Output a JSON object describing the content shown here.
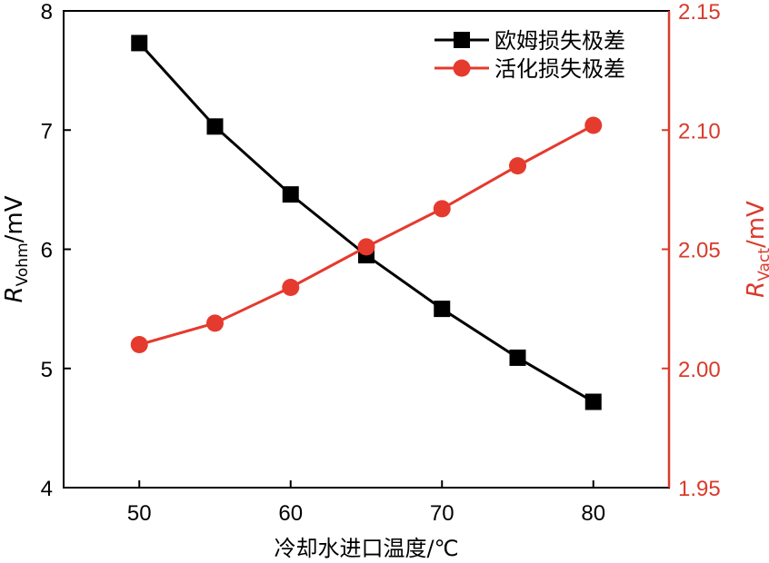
{
  "chart_data": {
    "type": "line",
    "x": [
      50,
      55,
      60,
      65,
      70,
      75,
      80
    ],
    "xlabel": "冷却水进口温度/℃",
    "xlim": [
      45,
      85
    ],
    "xticks": [
      50,
      60,
      70,
      80
    ],
    "left_axis": {
      "label_main": "R",
      "label_sub": "Vohm",
      "label_unit": "/mV",
      "ylim": [
        4,
        8
      ],
      "ticks": [
        "4",
        "5",
        "6",
        "7",
        "8"
      ],
      "color": "#000000"
    },
    "right_axis": {
      "label_main": "R",
      "label_sub": "Vact",
      "label_unit": "/mV",
      "ylim": [
        1.95,
        2.15
      ],
      "ticks": [
        "1.95",
        "2.00",
        "2.05",
        "2.10",
        "2.15"
      ],
      "color": "#d93a2b"
    },
    "series": [
      {
        "name": "欧姆损失极差",
        "axis": "left",
        "marker": "square",
        "color": "#000000",
        "values": [
          7.73,
          7.03,
          6.46,
          5.95,
          5.5,
          5.09,
          4.72
        ]
      },
      {
        "name": "活化损失极差",
        "axis": "right",
        "marker": "circle",
        "color": "#e53a2e",
        "values": [
          2.01,
          2.019,
          2.034,
          2.051,
          2.067,
          2.085,
          2.102
        ]
      }
    ],
    "legend_position": "top-right",
    "grid": false
  }
}
